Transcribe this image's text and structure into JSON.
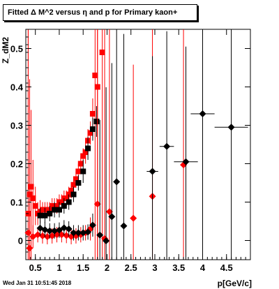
{
  "title": "Fitted Δ M^2 versus η and p for Primary kaon+",
  "footer_date": "Wed Jan 31 10:51:45 2018",
  "chart_data": {
    "type": "scatter",
    "title": "Fitted Δ M^2 versus η and p for Primary kaon+",
    "xlabel": "p[GeV/c]",
    "ylabel": "Z_dM2",
    "xlim": [
      0.3,
      5.0
    ],
    "ylim": [
      -0.05,
      0.55
    ],
    "x_ticks": [
      0.5,
      1,
      1.5,
      2,
      2.5,
      3,
      3.5,
      4,
      4.5
    ],
    "x_tick_labels": [
      "0.5",
      "1",
      "1.5",
      "2",
      "2.5",
      "3",
      "3.5",
      "4",
      "4.5"
    ],
    "y_ticks": [
      0,
      0.1,
      0.2,
      0.3,
      0.4,
      0.5
    ],
    "y_tick_labels": [
      "0",
      "0.1",
      "0.2",
      "0.3",
      "0.4",
      "0.5"
    ],
    "colors": {
      "black": "#000000",
      "red": "#ff0000"
    },
    "series": [
      {
        "color": "#ff0000",
        "marker": "square",
        "points": [
          [
            0.35,
            0.07
          ],
          [
            0.38,
            0.12
          ],
          [
            0.41,
            0.14
          ],
          [
            0.45,
            0.11
          ],
          [
            0.5,
            0.09
          ],
          [
            0.55,
            0.07
          ],
          [
            0.6,
            0.075
          ],
          [
            0.65,
            0.08
          ],
          [
            0.7,
            0.08
          ],
          [
            0.75,
            0.08
          ],
          [
            0.8,
            0.08
          ],
          [
            0.85,
            0.09
          ],
          [
            0.9,
            0.09
          ],
          [
            0.95,
            0.09
          ],
          [
            1.0,
            0.1
          ],
          [
            1.05,
            0.1
          ],
          [
            1.1,
            0.11
          ],
          [
            1.15,
            0.11
          ],
          [
            1.2,
            0.12
          ],
          [
            1.25,
            0.13
          ],
          [
            1.3,
            0.145
          ],
          [
            1.35,
            0.16
          ],
          [
            1.4,
            0.18
          ],
          [
            1.45,
            0.2
          ],
          [
            1.5,
            0.22
          ],
          [
            1.55,
            0.23
          ],
          [
            1.6,
            0.26
          ],
          [
            1.65,
            0.28
          ],
          [
            1.7,
            0.33
          ],
          [
            1.75,
            0.43
          ],
          [
            1.8,
            0.4
          ],
          [
            1.9,
            0.49
          ]
        ],
        "yerr": [
          0.6,
          0.3,
          0.2,
          0.1,
          0.05,
          0.03,
          0.03,
          0.02,
          0.02,
          0.02,
          0.02,
          0.02,
          0.02,
          0.02,
          0.02,
          0.02,
          0.02,
          0.02,
          0.02,
          0.02,
          0.02,
          0.02,
          0.02,
          0.02,
          0.02,
          0.03,
          0.03,
          0.03,
          0.04,
          0.5,
          0.6,
          0.6
        ]
      },
      {
        "color": "#000000",
        "marker": "square",
        "points": [
          [
            0.6,
            0.065
          ],
          [
            0.7,
            0.065
          ],
          [
            0.8,
            0.07
          ],
          [
            0.9,
            0.08
          ],
          [
            1.0,
            0.08
          ],
          [
            1.1,
            0.09
          ],
          [
            1.2,
            0.1
          ],
          [
            1.3,
            0.12
          ],
          [
            1.4,
            0.15
          ],
          [
            1.5,
            0.18
          ],
          [
            1.6,
            0.24
          ],
          [
            1.7,
            0.29
          ],
          [
            1.78,
            0.31
          ]
        ],
        "yerr": [
          0.02,
          0.02,
          0.02,
          0.02,
          0.02,
          0.02,
          0.02,
          0.02,
          0.02,
          0.03,
          0.03,
          0.03,
          0.04
        ]
      },
      {
        "color": "#ff0000",
        "marker": "diamond",
        "points": [
          [
            0.35,
            0.02
          ],
          [
            0.38,
            -0.02
          ],
          [
            0.45,
            0.01
          ],
          [
            0.55,
            0.015
          ],
          [
            0.65,
            0.012
          ],
          [
            0.75,
            0.01
          ],
          [
            0.85,
            0.012
          ],
          [
            0.95,
            0.015
          ],
          [
            1.05,
            0.015
          ],
          [
            1.15,
            0.013
          ],
          [
            1.25,
            0.01
          ],
          [
            1.35,
            0.012
          ],
          [
            1.45,
            0.015
          ],
          [
            1.55,
            0.02
          ],
          [
            1.65,
            0.03
          ],
          [
            1.8,
            0.095
          ],
          [
            1.95,
            0.005
          ],
          [
            2.05,
            0.075
          ],
          [
            2.55,
            0.058
          ],
          [
            2.95,
            0.115
          ],
          [
            3.6,
            0.197
          ]
        ],
        "yerr": [
          0.6,
          0.3,
          0.03,
          0.02,
          0.02,
          0.02,
          0.02,
          0.02,
          0.02,
          0.02,
          0.02,
          0.02,
          0.02,
          0.02,
          0.03,
          0.5,
          0.6,
          0.6,
          0.4,
          0.5,
          0.6
        ]
      },
      {
        "color": "#000000",
        "marker": "diamond",
        "points": [
          [
            0.6,
            0.032
          ],
          [
            0.7,
            0.028
          ],
          [
            0.8,
            0.025
          ],
          [
            0.9,
            0.025
          ],
          [
            1.0,
            0.027
          ],
          [
            1.1,
            0.033
          ],
          [
            1.2,
            0.03
          ],
          [
            1.3,
            0.02
          ],
          [
            1.4,
            0.02
          ],
          [
            1.5,
            0.02
          ],
          [
            1.6,
            0.022
          ],
          [
            1.7,
            0.04
          ],
          [
            1.85,
            0.014
          ],
          [
            1.98,
            -0.001
          ],
          [
            2.1,
            0.062
          ],
          [
            2.2,
            0.153
          ],
          [
            2.35,
            0.038
          ],
          [
            2.95,
            0.18
          ],
          [
            3.25,
            0.245
          ],
          [
            3.65,
            0.205
          ],
          [
            4.0,
            0.33
          ],
          [
            4.6,
            0.295
          ]
        ],
        "yerr": [
          0.02,
          0.02,
          0.02,
          0.02,
          0.02,
          0.02,
          0.02,
          0.02,
          0.02,
          0.02,
          0.02,
          0.03,
          0.3,
          0.4,
          0.4,
          0.4,
          0.5,
          0.3,
          0.3,
          0.3,
          0.4,
          0.6
        ],
        "xerr": [
          0,
          0,
          0,
          0,
          0,
          0,
          0,
          0,
          0,
          0,
          0,
          0,
          0,
          0,
          0,
          0,
          0,
          0.12,
          0.15,
          0.25,
          0.25,
          0.35
        ]
      }
    ]
  }
}
